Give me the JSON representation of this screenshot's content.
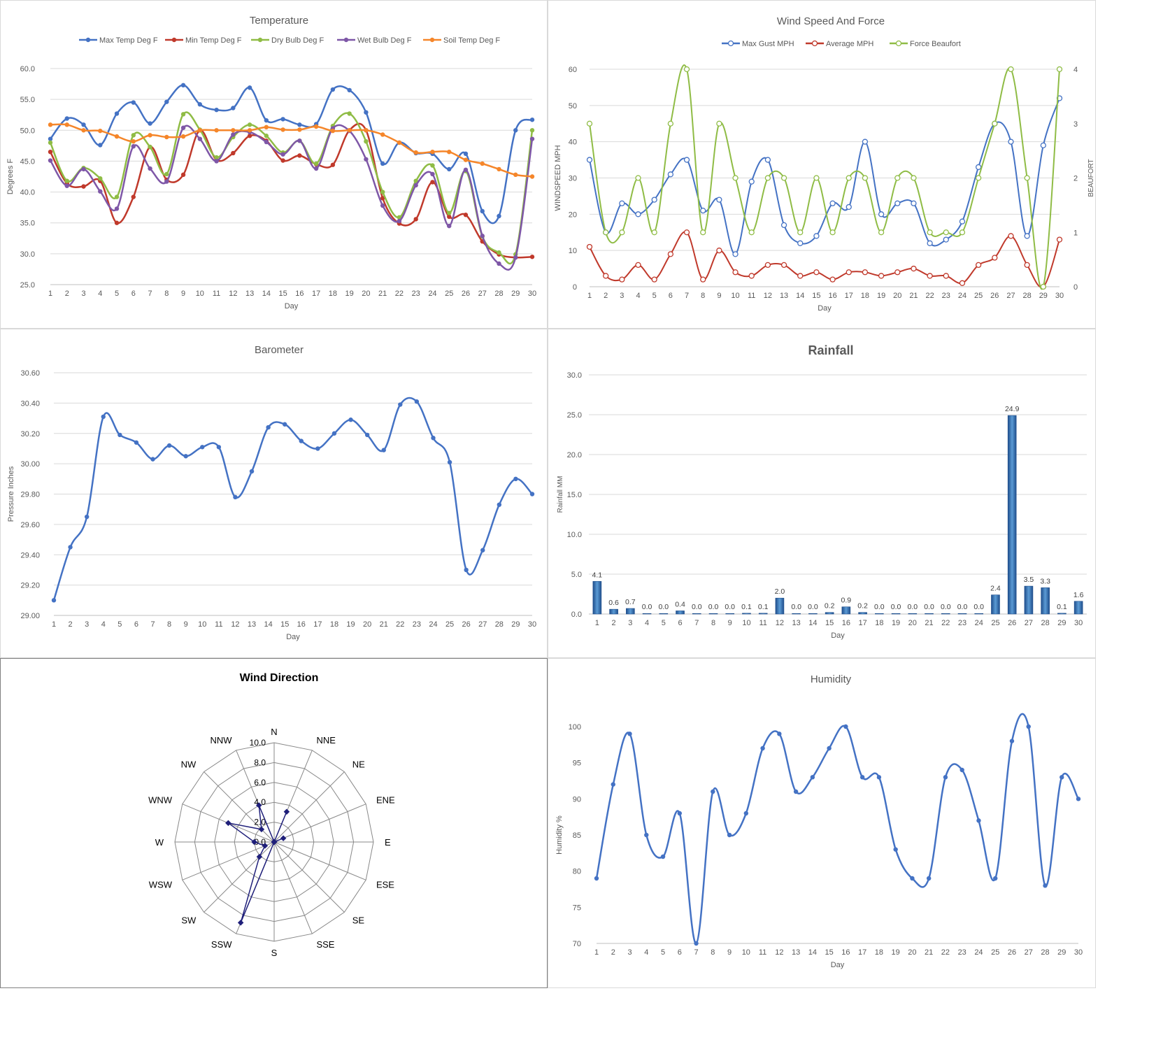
{
  "chart_data": [
    {
      "id": "temperature",
      "type": "line",
      "title": "Temperature",
      "xlabel": "Day",
      "ylabel": "Degrees F",
      "x": [
        1,
        2,
        3,
        4,
        5,
        6,
        7,
        8,
        9,
        10,
        11,
        12,
        13,
        14,
        15,
        16,
        17,
        18,
        19,
        20,
        21,
        22,
        23,
        24,
        25,
        26,
        27,
        28,
        29,
        30
      ],
      "ylim": [
        25,
        60
      ],
      "yticks": [
        "25.0",
        "30.0",
        "35.0",
        "40.0",
        "45.0",
        "50.0",
        "55.0",
        "60.0"
      ],
      "legend": "top",
      "grid": true,
      "series": [
        {
          "name": "Max Temp Deg F",
          "color": "#4472c4",
          "values": [
            48.6,
            51.9,
            50.9,
            47.6,
            52.7,
            54.5,
            51.1,
            54.6,
            57.3,
            54.2,
            53.3,
            53.6,
            56.9,
            51.6,
            51.8,
            50.9,
            51.0,
            56.6,
            56.5,
            52.9,
            44.6,
            48.0,
            46.3,
            46.2,
            43.7,
            46.2,
            36.9,
            36.1,
            50.0,
            51.7
          ]
        },
        {
          "name": "Min Temp Deg F",
          "color": "#c0392b",
          "values": [
            46.5,
            41.4,
            40.9,
            41.8,
            35.0,
            39.2,
            47.3,
            42.0,
            42.8,
            50.0,
            45.2,
            46.3,
            49.1,
            48.3,
            45.1,
            45.9,
            44.5,
            44.4,
            50.0,
            50.0,
            39.0,
            34.9,
            35.6,
            41.6,
            36.0,
            36.3,
            32.0,
            29.9,
            29.4,
            29.5
          ]
        },
        {
          "name": "Dry Bulb Deg F",
          "color": "#8fbc45",
          "values": [
            48.0,
            41.8,
            43.9,
            42.2,
            39.2,
            49.2,
            47.3,
            42.9,
            52.6,
            50.1,
            45.6,
            48.9,
            50.9,
            49.1,
            46.4,
            48.3,
            44.6,
            50.7,
            52.7,
            48.2,
            40.0,
            35.9,
            41.8,
            44.3,
            36.6,
            43.4,
            32.8,
            30.2,
            29.9,
            50.0
          ]
        },
        {
          "name": "Wet Bulb Deg F",
          "color": "#7e57a7",
          "values": [
            45.1,
            41.0,
            43.7,
            40.1,
            37.3,
            47.4,
            43.8,
            41.7,
            50.4,
            48.6,
            45.0,
            49.3,
            49.7,
            48.1,
            46.1,
            48.3,
            43.8,
            50.3,
            49.9,
            45.3,
            37.8,
            35.3,
            41.1,
            42.9,
            34.5,
            43.6,
            32.9,
            28.4,
            29.4,
            48.6
          ]
        },
        {
          "name": "Soil Temp Deg F",
          "color": "#f5862a",
          "values": [
            50.9,
            50.9,
            50.0,
            49.9,
            49.0,
            48.2,
            49.2,
            48.9,
            49.0,
            50.0,
            50.0,
            50.0,
            50.0,
            50.5,
            50.1,
            50.1,
            50.6,
            49.9,
            50.0,
            50.0,
            49.3,
            48.0,
            46.4,
            46.5,
            46.5,
            45.2,
            44.6,
            43.7,
            42.8,
            42.5
          ]
        }
      ]
    },
    {
      "id": "wind",
      "type": "line",
      "title": "Wind Speed And Force",
      "xlabel": "Day",
      "ylabel": "WINDSPEED MPH",
      "y2label": "BEAUFORT",
      "x": [
        1,
        2,
        3,
        4,
        5,
        6,
        7,
        8,
        9,
        10,
        11,
        12,
        13,
        14,
        15,
        16,
        17,
        18,
        19,
        20,
        21,
        22,
        23,
        24,
        25,
        26,
        27,
        28,
        29,
        30
      ],
      "ylim": [
        0,
        60
      ],
      "yticks": [
        "0",
        "10",
        "20",
        "30",
        "40",
        "50",
        "60"
      ],
      "y2lim": [
        0,
        4
      ],
      "y2ticks": [
        "0",
        "1",
        "2",
        "3",
        "4"
      ],
      "legend": "top",
      "grid": true,
      "series": [
        {
          "name": "Max Gust MPH",
          "axis": "left",
          "color": "#4472c4",
          "values": [
            35,
            15,
            23,
            20,
            24,
            31,
            35,
            21,
            24,
            9,
            29,
            35,
            17,
            12,
            14,
            23,
            22,
            40,
            20,
            23,
            23,
            12,
            13,
            18,
            33,
            45,
            40,
            14,
            39,
            52
          ]
        },
        {
          "name": "Average MPH",
          "axis": "left",
          "color": "#c0392b",
          "values": [
            11,
            3,
            2,
            6,
            2,
            9,
            15,
            2,
            10,
            4,
            3,
            6,
            6,
            3,
            4,
            2,
            4,
            4,
            3,
            4,
            5,
            3,
            3,
            1,
            6,
            8,
            14,
            6,
            0,
            13
          ]
        },
        {
          "name": "Force Beaufort",
          "axis": "right",
          "color": "#8fbc45",
          "values": [
            3,
            1,
            1,
            2,
            1,
            3,
            4,
            1,
            3,
            2,
            1,
            2,
            2,
            1,
            2,
            1,
            2,
            2,
            1,
            2,
            2,
            1,
            1,
            1,
            2,
            3,
            4,
            2,
            0,
            4
          ]
        }
      ]
    },
    {
      "id": "barometer",
      "type": "line",
      "title": "Barometer",
      "xlabel": "Day",
      "ylabel": "Pressure Inches",
      "x": [
        1,
        2,
        3,
        4,
        5,
        6,
        7,
        8,
        9,
        10,
        11,
        12,
        13,
        14,
        15,
        16,
        17,
        18,
        19,
        20,
        21,
        22,
        23,
        24,
        25,
        26,
        27,
        28,
        29,
        30
      ],
      "ylim": [
        29.0,
        30.6
      ],
      "yticks": [
        "29.00",
        "29.20",
        "29.40",
        "29.60",
        "29.80",
        "30.00",
        "30.20",
        "30.40",
        "30.60"
      ],
      "grid": true,
      "series": [
        {
          "name": "",
          "color": "#4472c4",
          "values": [
            29.1,
            29.45,
            29.65,
            30.31,
            30.19,
            30.14,
            30.03,
            30.12,
            30.05,
            30.11,
            30.11,
            29.78,
            29.95,
            30.24,
            30.26,
            30.15,
            30.1,
            30.2,
            30.29,
            30.19,
            30.09,
            30.39,
            30.41,
            30.17,
            30.01,
            29.3,
            29.43,
            29.73,
            29.9,
            29.8
          ]
        }
      ]
    },
    {
      "id": "rainfall",
      "type": "bar",
      "title": "Rainfall",
      "xlabel": "Day",
      "ylabel": "Rainfall MM",
      "categories": [
        "1",
        "2",
        "3",
        "4",
        "5",
        "6",
        "7",
        "8",
        "9",
        "10",
        "11",
        "12",
        "13",
        "14",
        "15",
        "16",
        "17",
        "18",
        "19",
        "20",
        "21",
        "22",
        "23",
        "24",
        "25",
        "26",
        "27",
        "28",
        "29",
        "30"
      ],
      "ylim": [
        0,
        30
      ],
      "yticks": [
        "0.0",
        "5.0",
        "10.0",
        "15.0",
        "20.0",
        "25.0",
        "30.0"
      ],
      "grid": true,
      "values": [
        4.1,
        0.6,
        0.7,
        0.0,
        0.0,
        0.4,
        0.0,
        0.0,
        0.0,
        0.1,
        0.1,
        2.0,
        0.0,
        0.0,
        0.2,
        0.9,
        0.2,
        0.0,
        0.0,
        0.0,
        0.0,
        0.0,
        0.0,
        0.0,
        2.4,
        24.9,
        3.5,
        3.3,
        0.1,
        1.6
      ],
      "labels": [
        "4.1",
        "0.6",
        "0.7",
        "0.0",
        "0.0",
        "0.4",
        "0.0",
        "0.0",
        "0.0",
        "0.1",
        "0.1",
        "2.0",
        "0.0",
        "0.0",
        "0.2",
        "0.9",
        "0.2",
        "0.0",
        "0.0",
        "0.0",
        "0.0",
        "0.0",
        "0.0",
        "0.0",
        "2.4",
        "24.9",
        "3.5",
        "3.3",
        "0.1",
        "1.6"
      ],
      "color": "#2e6db4"
    },
    {
      "id": "wind_direction",
      "type": "radar",
      "title": "Wind Direction",
      "categories": [
        "N",
        "NNE",
        "NE",
        "ENE",
        "E",
        "ESE",
        "SE",
        "SSE",
        "S",
        "SSW",
        "SW",
        "WSW",
        "W",
        "WNW",
        "NW",
        "NNW"
      ],
      "rlim": [
        0,
        10
      ],
      "rticks": [
        "0.0",
        "2.0",
        "4.0",
        "6.0",
        "8.0",
        "10.0"
      ],
      "values": [
        0.0,
        3.3,
        0.0,
        1.0,
        0.0,
        0.0,
        0.0,
        0.0,
        0.0,
        8.8,
        2.1,
        1.0,
        2.0,
        5.0,
        1.8,
        4.0
      ],
      "color": "#1f1f7a"
    },
    {
      "id": "humidity",
      "type": "line",
      "title": "Humidity",
      "xlabel": "Day",
      "ylabel": "Humidity %",
      "x": [
        1,
        2,
        3,
        4,
        5,
        6,
        7,
        8,
        9,
        10,
        11,
        12,
        13,
        14,
        15,
        16,
        17,
        18,
        19,
        20,
        21,
        22,
        23,
        24,
        25,
        26,
        27,
        28,
        29,
        30
      ],
      "ylim": [
        70,
        100
      ],
      "yticks": [
        "70",
        "75",
        "80",
        "85",
        "90",
        "95",
        "100"
      ],
      "grid": false,
      "series": [
        {
          "name": "",
          "color": "#4472c4",
          "values": [
            79,
            92,
            99,
            85,
            82,
            88,
            70,
            91,
            85,
            88,
            97,
            99,
            91,
            93,
            97,
            100,
            93,
            93,
            83,
            79,
            79,
            93,
            94,
            87,
            79,
            98,
            100,
            78,
            93,
            90
          ]
        }
      ]
    }
  ]
}
